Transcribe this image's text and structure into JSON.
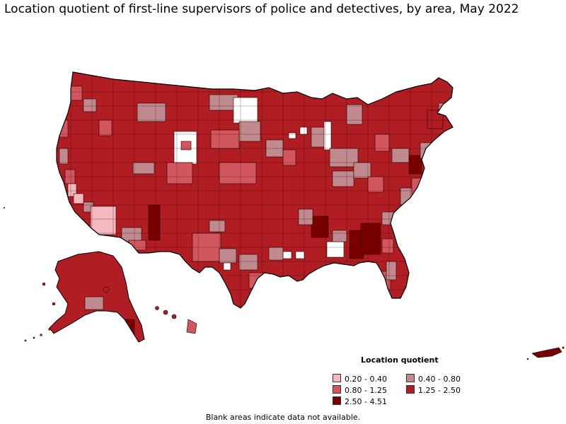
{
  "title": "Location quotient of first-line supervisors of police and detectives, by area, May 2022",
  "legend": {
    "title": "Location quotient",
    "items": [
      {
        "label": "0.20 - 0.40",
        "color": "#f5b8be"
      },
      {
        "label": "0.40 - 0.80",
        "color": "#c08a8e"
      },
      {
        "label": "0.80 - 1.25",
        "color": "#d2565e"
      },
      {
        "label": "1.25 - 2.50",
        "color": "#b01e24"
      },
      {
        "label": "2.50 - 4.51",
        "color": "#7a0000"
      }
    ]
  },
  "no_data_color": "#ffffff",
  "note": "Blank areas indicate data not available."
}
